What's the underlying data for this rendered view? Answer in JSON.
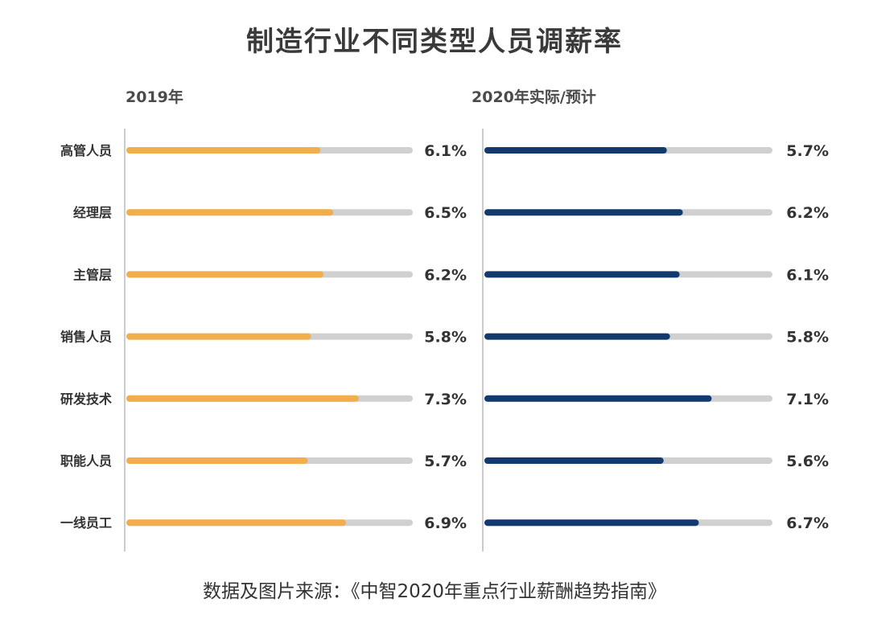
{
  "title": "制造行业不同类型人员调薪率",
  "source": "数据及图片来源：《中智2020年重点行业薪酬趋势指南》",
  "colors": {
    "panel_2019": "#f2ae4a",
    "panel_2020": "#133a6e",
    "track": "#d0d0d0",
    "axis": "#bbbbbb"
  },
  "chart_data": [
    {
      "type": "bar",
      "orientation": "horizontal",
      "title": "2019年",
      "categories": [
        "高管人员",
        "经理层",
        "主管层",
        "销售人员",
        "研发技术",
        "职能人员",
        "一线员工"
      ],
      "values": [
        6.1,
        6.5,
        6.2,
        5.8,
        7.3,
        5.7,
        6.9
      ],
      "value_labels": [
        "6.1%",
        "6.5%",
        "6.2%",
        "5.8%",
        "7.3%",
        "5.7%",
        "6.9%"
      ],
      "xlim": [
        0,
        9
      ]
    },
    {
      "type": "bar",
      "orientation": "horizontal",
      "title": "2020年实际/预计",
      "categories": [
        "高管人员",
        "经理层",
        "主管层",
        "销售人员",
        "研发技术",
        "职能人员",
        "一线员工"
      ],
      "values": [
        5.7,
        6.2,
        6.1,
        5.8,
        7.1,
        5.6,
        6.7
      ],
      "value_labels": [
        "5.7%",
        "6.2%",
        "6.1%",
        "5.8%",
        "7.1%",
        "5.6%",
        "6.7%"
      ],
      "xlim": [
        0,
        9
      ]
    }
  ]
}
